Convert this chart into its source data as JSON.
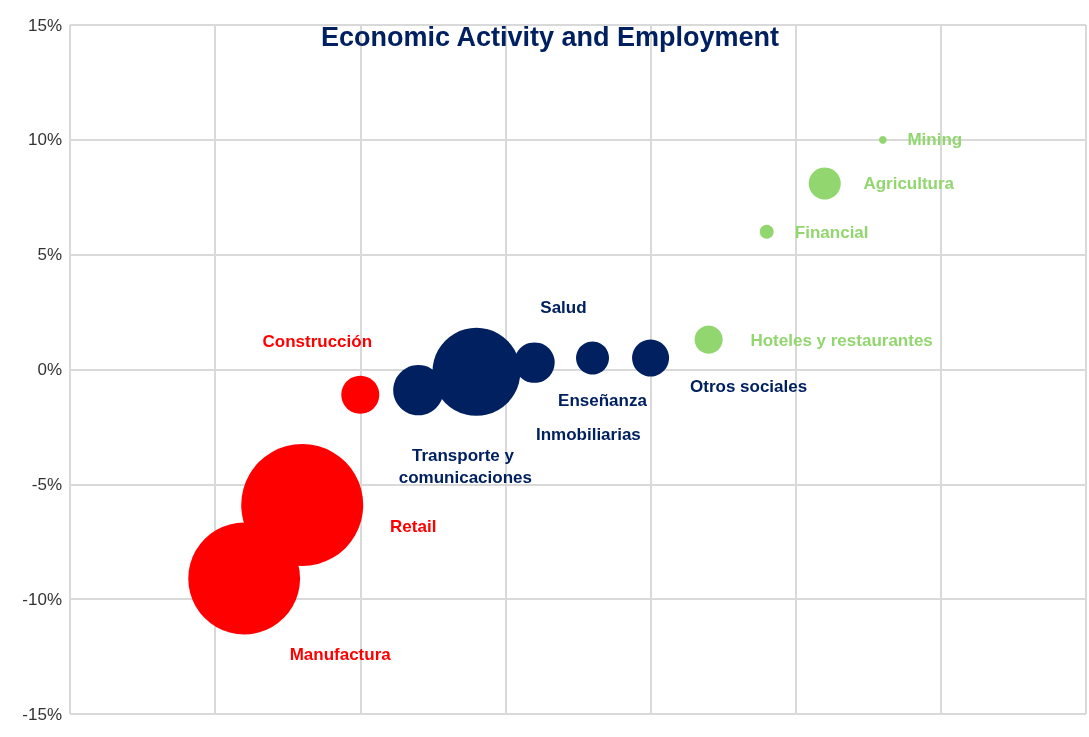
{
  "chart_data": {
    "type": "bubble",
    "title": "Economic Activity and Employment",
    "categories": [
      null,
      null,
      null,
      null,
      null,
      null,
      null,
      null,
      null,
      null,
      null,
      null,
      null,
      null,
      null,
      null,
      null,
      null,
      null,
      null,
      null,
      null,
      null,
      null,
      null,
      null,
      null,
      null,
      null,
      null,
      null,
      null,
      null,
      null,
      null,
      null
    ],
    "ylim": [
      -15,
      15
    ],
    "yticks": [
      {
        "value": -15,
        "label": "-15%"
      },
      {
        "value": -10,
        "label": "-10%"
      },
      {
        "value": -5,
        "label": "-5%"
      },
      {
        "value": 0,
        "label": "0%"
      },
      {
        "value": 5,
        "label": "5%"
      },
      {
        "value": 10,
        "label": "10%"
      },
      {
        "value": 15,
        "label": "15%"
      }
    ],
    "grid": true,
    "series": [
      {
        "color": "#ff0000",
        "values": [
          null,
          null,
          null,
          null,
          null,
          null,
          -9.1,
          null,
          -5.9,
          null,
          -1.1,
          null,
          null,
          null,
          null,
          null,
          null,
          null,
          null,
          null,
          null,
          null,
          null,
          null,
          null,
          null,
          null,
          null,
          null,
          null,
          null,
          null,
          null,
          null,
          null,
          null
        ],
        "sizes": [
          null,
          null,
          null,
          null,
          null,
          null,
          0.84,
          null,
          1,
          null,
          0.097,
          null,
          null,
          null,
          null,
          null,
          null,
          null,
          null,
          null,
          null,
          null,
          null,
          null,
          null,
          null,
          null,
          null,
          null,
          null,
          null,
          null,
          null,
          null,
          null,
          null
        ]
      },
      {
        "color": "#002060",
        "values": [
          null,
          null,
          null,
          null,
          null,
          null,
          null,
          null,
          null,
          null,
          null,
          null,
          -0.9,
          null,
          -0.1,
          null,
          0.3,
          null,
          0.5,
          null,
          0.5,
          null,
          null,
          null,
          null,
          null,
          null,
          null,
          null,
          null,
          null,
          null,
          null,
          null,
          null,
          null
        ],
        "sizes": [
          null,
          null,
          null,
          null,
          null,
          null,
          null,
          null,
          null,
          null,
          null,
          null,
          0.17,
          null,
          0.52,
          null,
          0.11,
          null,
          0.073,
          null,
          0.092,
          null,
          null,
          null,
          null,
          null,
          null,
          null,
          null,
          null,
          null,
          null,
          null,
          null,
          null,
          null
        ]
      },
      {
        "color": "#92d66f",
        "values": [
          null,
          null,
          null,
          null,
          null,
          null,
          null,
          null,
          null,
          null,
          null,
          null,
          null,
          null,
          null,
          null,
          null,
          null,
          null,
          null,
          null,
          null,
          1.3,
          null,
          6.0,
          null,
          8.1,
          null,
          10.0,
          null,
          null,
          null,
          null,
          null,
          null,
          null
        ],
        "sizes": [
          null,
          null,
          null,
          null,
          null,
          null,
          null,
          null,
          null,
          null,
          null,
          null,
          null,
          null,
          null,
          null,
          null,
          null,
          null,
          null,
          null,
          null,
          0.053,
          null,
          0.013,
          null,
          0.069,
          null,
          0.004,
          null,
          null,
          null,
          null,
          null,
          null,
          null
        ]
      }
    ],
    "annotations": [
      "Manufactura",
      "Retail",
      "Construcción",
      "Transporte y comunicaciones",
      "Inmobiliarias",
      "Salud",
      "Enseñanza",
      "Otros sociales",
      "Hoteles y restaurantes",
      "Financial",
      "Agricultura",
      "Mining"
    ]
  }
}
